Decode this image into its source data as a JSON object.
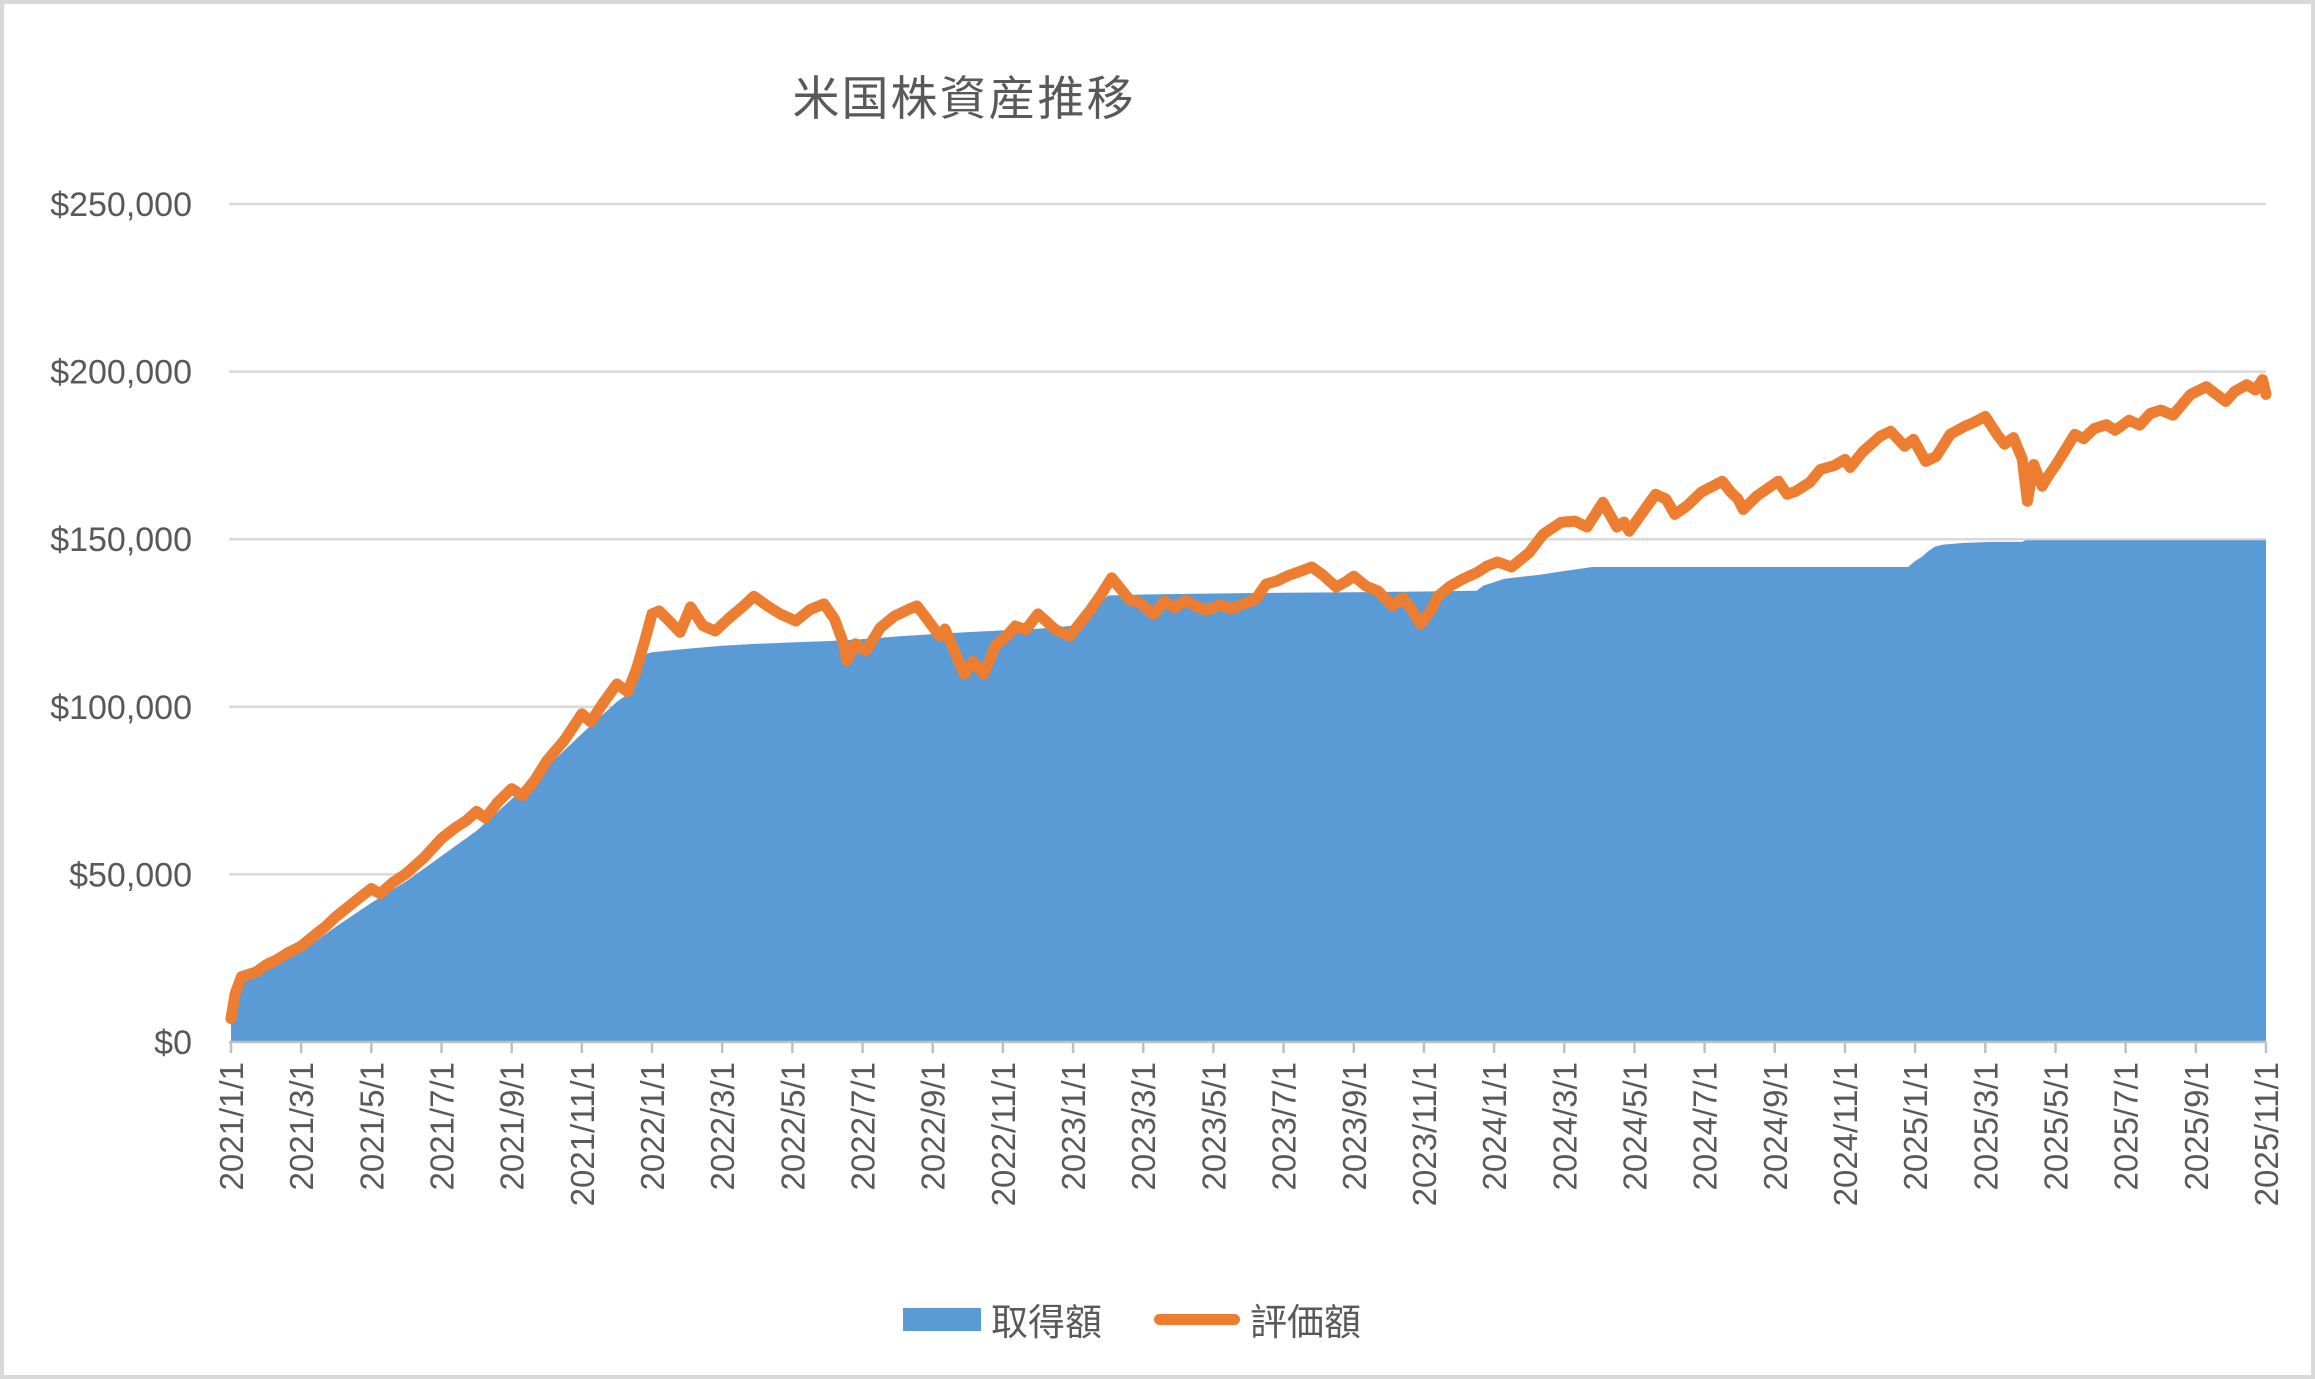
{
  "title": "米国株資産推移",
  "colors": {
    "acquisition_blue": "#5B9BD5",
    "valuation_orange": "#ED7D31",
    "gridline": "#D9D9D9",
    "axis_line": "#BFBFBF",
    "text_gray": "#595959",
    "border": "#D9D9D9",
    "background": "#FFFFFF"
  },
  "legend": {
    "items": [
      {
        "label": "取得額",
        "type": "area",
        "color": "#5B9BD5"
      },
      {
        "label": "評価額",
        "type": "line",
        "color": "#ED7D31"
      }
    ]
  },
  "chart_data": {
    "type": "area",
    "title": "米国株資産推移",
    "x_unit": "months_since_2021/1/1",
    "x_range_labels": [
      "2021/1/1",
      "2025/11/1"
    ],
    "xlim": [
      0,
      58
    ],
    "ylim": [
      0,
      250000
    ],
    "grid": true,
    "legend_position": "bottom-center",
    "y_axis": {
      "tick_values": [
        0,
        50000,
        100000,
        150000,
        200000,
        250000
      ],
      "tick_labels": [
        "$0",
        "$50,000",
        "$100,000",
        "$150,000",
        "$200,000",
        "$250,000"
      ]
    },
    "x_axis": {
      "months_per_tick": 2,
      "tick_labels": [
        "2021/1/1",
        "2021/3/1",
        "2021/5/1",
        "2021/7/1",
        "2021/9/1",
        "2021/11/1",
        "2022/1/1",
        "2022/3/1",
        "2022/5/1",
        "2022/7/1",
        "2022/9/1",
        "2022/11/1",
        "2023/1/1",
        "2023/3/1",
        "2023/5/1",
        "2023/7/1",
        "2023/9/1",
        "2023/11/1",
        "2024/1/1",
        "2024/3/1",
        "2024/5/1",
        "2024/7/1",
        "2024/9/1",
        "2024/11/1",
        "2025/1/1",
        "2025/3/1",
        "2025/5/1",
        "2025/7/1",
        "2025/9/1",
        "2025/11/1"
      ]
    },
    "series": [
      {
        "name": "取得額",
        "type": "area",
        "color": "#5B9BD5",
        "points": [
          [
            0,
            7000
          ],
          [
            0.15,
            16000
          ],
          [
            0.5,
            19500
          ],
          [
            1,
            21500
          ],
          [
            2,
            27000
          ],
          [
            3,
            34500
          ],
          [
            4,
            41500
          ],
          [
            5,
            48000
          ],
          [
            6,
            55500
          ],
          [
            7,
            63000
          ],
          [
            8,
            72500
          ],
          [
            9,
            82000
          ],
          [
            10,
            92000
          ],
          [
            11,
            101500
          ],
          [
            11.35,
            104000
          ],
          [
            11.55,
            115000
          ],
          [
            12,
            116300
          ],
          [
            13,
            117300
          ],
          [
            14,
            118200
          ],
          [
            15,
            118800
          ],
          [
            16,
            119200
          ],
          [
            17,
            119600
          ],
          [
            18,
            120200
          ],
          [
            19,
            121000
          ],
          [
            20,
            121700
          ],
          [
            21,
            122300
          ],
          [
            22,
            122800
          ],
          [
            23,
            123300
          ],
          [
            24,
            124200
          ],
          [
            24.4,
            128000
          ],
          [
            25,
            133200
          ],
          [
            26,
            133500
          ],
          [
            28,
            133800
          ],
          [
            30,
            134000
          ],
          [
            32,
            134200
          ],
          [
            34,
            134400
          ],
          [
            35.5,
            134600
          ],
          [
            35.7,
            136200
          ],
          [
            36.3,
            138200
          ],
          [
            37.3,
            139400
          ],
          [
            38,
            140500
          ],
          [
            38.8,
            141700
          ],
          [
            47.8,
            141700
          ],
          [
            48,
            143500
          ],
          [
            48.2,
            144800
          ],
          [
            48.35,
            146200
          ],
          [
            48.55,
            147700
          ],
          [
            48.8,
            148400
          ],
          [
            49.4,
            148900
          ],
          [
            50.2,
            149200
          ],
          [
            51.05,
            149200
          ],
          [
            51.15,
            149700
          ],
          [
            58,
            149700
          ]
        ]
      },
      {
        "name": "評価額",
        "type": "line",
        "color": "#ED7D31",
        "stroke_width": 11,
        "points": [
          [
            0,
            7000
          ],
          [
            0.12,
            14500
          ],
          [
            0.3,
            19500
          ],
          [
            0.7,
            20800
          ],
          [
            1,
            23000
          ],
          [
            1.3,
            24500
          ],
          [
            1.6,
            26500
          ],
          [
            2,
            28600
          ],
          [
            2.4,
            32000
          ],
          [
            2.7,
            34500
          ],
          [
            3,
            37500
          ],
          [
            3.3,
            40000
          ],
          [
            3.6,
            42500
          ],
          [
            4,
            45800
          ],
          [
            4.25,
            44200
          ],
          [
            4.6,
            47500
          ],
          [
            5,
            50300
          ],
          [
            5.5,
            55000
          ],
          [
            6,
            60700
          ],
          [
            6.4,
            64000
          ],
          [
            6.7,
            66000
          ],
          [
            7,
            68800
          ],
          [
            7.25,
            66800
          ],
          [
            7.6,
            71500
          ],
          [
            8,
            75600
          ],
          [
            8.3,
            73500
          ],
          [
            8.65,
            78000
          ],
          [
            9,
            83900
          ],
          [
            9.5,
            90000
          ],
          [
            10,
            97900
          ],
          [
            10.25,
            95500
          ],
          [
            10.6,
            101000
          ],
          [
            11,
            106800
          ],
          [
            11.3,
            104500
          ],
          [
            11.55,
            111000
          ],
          [
            11.8,
            120000
          ],
          [
            12,
            127700
          ],
          [
            12.2,
            128600
          ],
          [
            12.5,
            125500
          ],
          [
            12.8,
            122200
          ],
          [
            13.1,
            129800
          ],
          [
            13.45,
            124200
          ],
          [
            13.8,
            122600
          ],
          [
            14.2,
            126500
          ],
          [
            14.6,
            130000
          ],
          [
            14.9,
            133000
          ],
          [
            15.3,
            130000
          ],
          [
            15.65,
            127700
          ],
          [
            16.1,
            125600
          ],
          [
            16.5,
            129000
          ],
          [
            16.9,
            130700
          ],
          [
            17.2,
            126200
          ],
          [
            17.45,
            119000
          ],
          [
            17.55,
            113700
          ],
          [
            17.8,
            118800
          ],
          [
            18.1,
            116700
          ],
          [
            18.5,
            123500
          ],
          [
            18.9,
            127000
          ],
          [
            19.3,
            129000
          ],
          [
            19.55,
            130100
          ],
          [
            19.85,
            126000
          ],
          [
            20.2,
            121100
          ],
          [
            20.35,
            123200
          ],
          [
            20.6,
            117000
          ],
          [
            20.9,
            109800
          ],
          [
            21.15,
            113500
          ],
          [
            21.45,
            109800
          ],
          [
            21.8,
            118500
          ],
          [
            22.1,
            121000
          ],
          [
            22.35,
            124100
          ],
          [
            22.65,
            123000
          ],
          [
            23,
            127700
          ],
          [
            23.5,
            123000
          ],
          [
            23.9,
            121100
          ],
          [
            24.2,
            125000
          ],
          [
            24.5,
            129000
          ],
          [
            24.8,
            133500
          ],
          [
            25.1,
            138500
          ],
          [
            25.6,
            132000
          ],
          [
            25.9,
            131000
          ],
          [
            26.3,
            127600
          ],
          [
            26.6,
            131500
          ],
          [
            26.9,
            129500
          ],
          [
            27.2,
            131800
          ],
          [
            27.5,
            130000
          ],
          [
            27.8,
            128800
          ],
          [
            28.2,
            130500
          ],
          [
            28.5,
            129200
          ],
          [
            28.8,
            130500
          ],
          [
            29.2,
            132000
          ],
          [
            29.5,
            136600
          ],
          [
            29.8,
            137500
          ],
          [
            30.1,
            139000
          ],
          [
            30.5,
            140500
          ],
          [
            30.8,
            141700
          ],
          [
            31.1,
            139500
          ],
          [
            31.5,
            135700
          ],
          [
            31.8,
            137500
          ],
          [
            32,
            139000
          ],
          [
            32.35,
            136000
          ],
          [
            32.7,
            134500
          ],
          [
            33.1,
            130100
          ],
          [
            33.4,
            132500
          ],
          [
            33.65,
            129000
          ],
          [
            33.9,
            124700
          ],
          [
            34.15,
            128000
          ],
          [
            34.4,
            133000
          ],
          [
            34.75,
            136000
          ],
          [
            35.1,
            138100
          ],
          [
            35.5,
            140000
          ],
          [
            35.8,
            142000
          ],
          [
            36.1,
            143200
          ],
          [
            36.5,
            141700
          ],
          [
            37,
            146000
          ],
          [
            37.4,
            151500
          ],
          [
            37.9,
            155000
          ],
          [
            38.3,
            155400
          ],
          [
            38.65,
            153600
          ],
          [
            39.1,
            161000
          ],
          [
            39.5,
            153600
          ],
          [
            39.7,
            155100
          ],
          [
            39.85,
            152400
          ],
          [
            40.3,
            159000
          ],
          [
            40.6,
            163400
          ],
          [
            40.9,
            162000
          ],
          [
            41.15,
            157400
          ],
          [
            41.5,
            160000
          ],
          [
            41.9,
            164000
          ],
          [
            42.5,
            167300
          ],
          [
            42.75,
            164000
          ],
          [
            42.95,
            162000
          ],
          [
            43.1,
            158900
          ],
          [
            43.5,
            163000
          ],
          [
            44.1,
            167300
          ],
          [
            44.35,
            163400
          ],
          [
            44.6,
            164300
          ],
          [
            45,
            167000
          ],
          [
            45.3,
            170800
          ],
          [
            45.7,
            172000
          ],
          [
            46,
            173800
          ],
          [
            46.15,
            171400
          ],
          [
            46.5,
            176000
          ],
          [
            47,
            180700
          ],
          [
            47.3,
            182200
          ],
          [
            47.7,
            177700
          ],
          [
            47.95,
            179800
          ],
          [
            48.3,
            173200
          ],
          [
            48.6,
            174700
          ],
          [
            49,
            181300
          ],
          [
            49.4,
            183600
          ],
          [
            49.6,
            184500
          ],
          [
            50,
            186600
          ],
          [
            50.35,
            181000
          ],
          [
            50.55,
            178300
          ],
          [
            50.8,
            180300
          ],
          [
            51.05,
            174000
          ],
          [
            51.2,
            161300
          ],
          [
            51.38,
            172300
          ],
          [
            51.62,
            165800
          ],
          [
            51.8,
            169000
          ],
          [
            52,
            172000
          ],
          [
            52.3,
            177000
          ],
          [
            52.55,
            181300
          ],
          [
            52.8,
            180000
          ],
          [
            53.1,
            183000
          ],
          [
            53.45,
            184200
          ],
          [
            53.7,
            182500
          ],
          [
            54.1,
            185500
          ],
          [
            54.4,
            184000
          ],
          [
            54.7,
            187500
          ],
          [
            55,
            188500
          ],
          [
            55.35,
            187000
          ],
          [
            55.85,
            193200
          ],
          [
            56.3,
            195500
          ],
          [
            56.55,
            193500
          ],
          [
            56.85,
            191100
          ],
          [
            57.1,
            194000
          ],
          [
            57.45,
            196100
          ],
          [
            57.7,
            194500
          ],
          [
            57.9,
            197600
          ],
          [
            58,
            193200
          ]
        ]
      }
    ]
  }
}
